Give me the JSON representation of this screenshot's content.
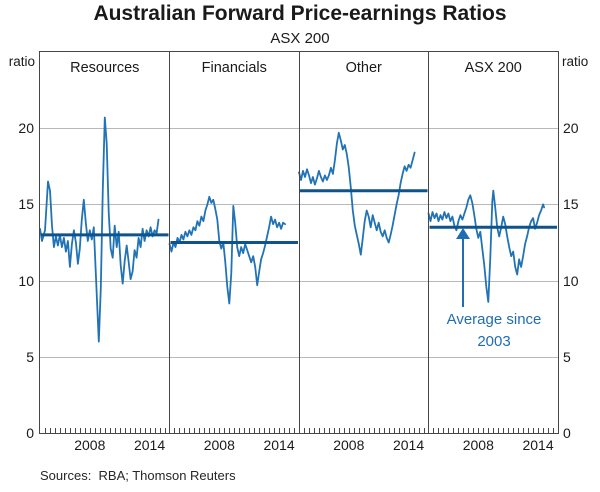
{
  "chart_data": {
    "type": "line",
    "title": "Australian Forward Price-earnings Ratios",
    "subtitle": "ASX 200",
    "ylabel_left": "ratio",
    "ylabel_right": "ratio",
    "ylim": [
      0,
      25
    ],
    "y_ticks": [
      0,
      5,
      10,
      15,
      20
    ],
    "grid_values": [
      5,
      10,
      15,
      20
    ],
    "grid": true,
    "legend": "none",
    "x_range": [
      2003,
      2016
    ],
    "x_tick_years": [
      2008,
      2014
    ],
    "x_tick_labels": [
      "2008",
      "2014"
    ],
    "minor_tick_interval_years": 0.5,
    "colors": {
      "series": "#2173b5",
      "average_line": "#0e538c",
      "annotation": "#1f6db2",
      "grid": "#b8b8b8",
      "frame": "#464646",
      "text": "#1a1a1a"
    },
    "annotation": {
      "line1": "Average since",
      "line2": "2003",
      "panel": "ASX 200",
      "points_to_value": 13.5
    },
    "panels": [
      {
        "label": "Resources",
        "average": 13.0,
        "series": [
          [
            2003,
            13.4
          ],
          [
            2003.2,
            12.6
          ],
          [
            2003.5,
            13.3
          ],
          [
            2003.8,
            16.5
          ],
          [
            2004,
            15.9
          ],
          [
            2004.2,
            13.6
          ],
          [
            2004.4,
            12.2
          ],
          [
            2004.6,
            12.9
          ],
          [
            2004.8,
            12.3
          ],
          [
            2005,
            13.0
          ],
          [
            2005.2,
            12.2
          ],
          [
            2005.4,
            12.8
          ],
          [
            2005.6,
            11.9
          ],
          [
            2005.8,
            12.6
          ],
          [
            2006,
            10.9
          ],
          [
            2006.2,
            12.4
          ],
          [
            2006.4,
            13.3
          ],
          [
            2006.6,
            12.5
          ],
          [
            2006.8,
            11.1
          ],
          [
            2007,
            12.1
          ],
          [
            2007.2,
            14.0
          ],
          [
            2007.4,
            15.3
          ],
          [
            2007.6,
            13.8
          ],
          [
            2007.8,
            12.6
          ],
          [
            2008,
            13.3
          ],
          [
            2008.2,
            12.7
          ],
          [
            2008.4,
            13.5
          ],
          [
            2008.6,
            10.5
          ],
          [
            2008.9,
            6.0
          ],
          [
            2009.1,
            9.5
          ],
          [
            2009.3,
            16.0
          ],
          [
            2009.5,
            20.7
          ],
          [
            2009.7,
            19.0
          ],
          [
            2009.9,
            14.5
          ],
          [
            2010.1,
            12.1
          ],
          [
            2010.3,
            11.5
          ],
          [
            2010.5,
            13.6
          ],
          [
            2010.7,
            12.2
          ],
          [
            2010.9,
            13.2
          ],
          [
            2011.1,
            11.0
          ],
          [
            2011.3,
            9.8
          ],
          [
            2011.5,
            11.3
          ],
          [
            2011.7,
            12.3
          ],
          [
            2011.9,
            11.2
          ],
          [
            2012.1,
            10.1
          ],
          [
            2012.3,
            10.6
          ],
          [
            2012.5,
            12.0
          ],
          [
            2012.7,
            11.5
          ],
          [
            2012.9,
            12.8
          ],
          [
            2013.1,
            12.2
          ],
          [
            2013.3,
            13.4
          ],
          [
            2013.5,
            12.6
          ],
          [
            2013.7,
            13.3
          ],
          [
            2013.9,
            12.9
          ],
          [
            2014.1,
            13.5
          ],
          [
            2014.3,
            12.9
          ],
          [
            2014.5,
            13.3
          ],
          [
            2014.7,
            13.1
          ],
          [
            2014.9,
            14.0
          ]
        ]
      },
      {
        "label": "Financials",
        "average": 12.5,
        "series": [
          [
            2003,
            12.4
          ],
          [
            2003.2,
            11.9
          ],
          [
            2003.4,
            12.5
          ],
          [
            2003.6,
            12.2
          ],
          [
            2003.8,
            12.8
          ],
          [
            2004,
            12.5
          ],
          [
            2004.2,
            13.0
          ],
          [
            2004.4,
            12.7
          ],
          [
            2004.6,
            13.2
          ],
          [
            2004.8,
            12.9
          ],
          [
            2005,
            13.3
          ],
          [
            2005.2,
            13.0
          ],
          [
            2005.4,
            13.5
          ],
          [
            2005.6,
            13.3
          ],
          [
            2005.8,
            13.9
          ],
          [
            2006,
            13.6
          ],
          [
            2006.2,
            14.2
          ],
          [
            2006.4,
            13.9
          ],
          [
            2006.6,
            14.6
          ],
          [
            2006.8,
            15.0
          ],
          [
            2007,
            15.5
          ],
          [
            2007.2,
            15.1
          ],
          [
            2007.4,
            15.3
          ],
          [
            2007.6,
            14.7
          ],
          [
            2007.8,
            14.0
          ],
          [
            2008,
            12.6
          ],
          [
            2008.2,
            12.1
          ],
          [
            2008.4,
            12.5
          ],
          [
            2008.6,
            11.2
          ],
          [
            2008.8,
            9.6
          ],
          [
            2009,
            8.5
          ],
          [
            2009.2,
            10.5
          ],
          [
            2009.4,
            14.9
          ],
          [
            2009.6,
            13.8
          ],
          [
            2009.8,
            12.2
          ],
          [
            2010,
            11.6
          ],
          [
            2010.2,
            12.2
          ],
          [
            2010.4,
            11.8
          ],
          [
            2010.6,
            12.4
          ],
          [
            2010.8,
            12.0
          ],
          [
            2011,
            11.6
          ],
          [
            2011.2,
            11.2
          ],
          [
            2011.4,
            11.6
          ],
          [
            2011.6,
            10.9
          ],
          [
            2011.8,
            9.7
          ],
          [
            2012,
            10.6
          ],
          [
            2012.2,
            11.4
          ],
          [
            2012.4,
            11.8
          ],
          [
            2012.6,
            12.3
          ],
          [
            2012.8,
            12.9
          ],
          [
            2013,
            13.5
          ],
          [
            2013.2,
            14.2
          ],
          [
            2013.4,
            13.7
          ],
          [
            2013.6,
            14.0
          ],
          [
            2013.8,
            13.5
          ],
          [
            2014,
            13.8
          ],
          [
            2014.2,
            13.4
          ],
          [
            2014.4,
            13.8
          ],
          [
            2014.6,
            13.7
          ]
        ]
      },
      {
        "label": "Other",
        "average": 15.9,
        "series": [
          [
            2003,
            17.1
          ],
          [
            2003.2,
            16.6
          ],
          [
            2003.4,
            17.2
          ],
          [
            2003.6,
            16.8
          ],
          [
            2003.8,
            17.3
          ],
          [
            2004,
            16.9
          ],
          [
            2004.2,
            16.4
          ],
          [
            2004.4,
            16.8
          ],
          [
            2004.6,
            16.3
          ],
          [
            2004.8,
            16.7
          ],
          [
            2005,
            17.2
          ],
          [
            2005.2,
            16.8
          ],
          [
            2005.4,
            16.5
          ],
          [
            2005.6,
            16.9
          ],
          [
            2005.8,
            16.6
          ],
          [
            2006,
            16.9
          ],
          [
            2006.2,
            17.4
          ],
          [
            2006.4,
            17.0
          ],
          [
            2006.6,
            17.9
          ],
          [
            2006.8,
            19.0
          ],
          [
            2007,
            19.7
          ],
          [
            2007.2,
            19.2
          ],
          [
            2007.4,
            18.6
          ],
          [
            2007.6,
            18.9
          ],
          [
            2007.8,
            18.3
          ],
          [
            2008,
            17.4
          ],
          [
            2008.2,
            16.1
          ],
          [
            2008.4,
            14.6
          ],
          [
            2008.6,
            13.6
          ],
          [
            2008.8,
            13.0
          ],
          [
            2009,
            12.4
          ],
          [
            2009.2,
            11.7
          ],
          [
            2009.4,
            12.8
          ],
          [
            2009.6,
            13.9
          ],
          [
            2009.8,
            14.6
          ],
          [
            2010,
            14.2
          ],
          [
            2010.2,
            13.5
          ],
          [
            2010.4,
            14.3
          ],
          [
            2010.6,
            13.8
          ],
          [
            2010.8,
            13.3
          ],
          [
            2011,
            13.8
          ],
          [
            2011.2,
            13.2
          ],
          [
            2011.4,
            12.9
          ],
          [
            2011.6,
            13.3
          ],
          [
            2011.8,
            12.8
          ],
          [
            2012,
            12.5
          ],
          [
            2012.2,
            13.0
          ],
          [
            2012.4,
            13.6
          ],
          [
            2012.6,
            14.3
          ],
          [
            2012.8,
            15.0
          ],
          [
            2013,
            15.6
          ],
          [
            2013.2,
            16.4
          ],
          [
            2013.4,
            17.0
          ],
          [
            2013.6,
            17.5
          ],
          [
            2013.8,
            17.2
          ],
          [
            2014,
            17.6
          ],
          [
            2014.2,
            17.4
          ],
          [
            2014.4,
            17.9
          ],
          [
            2014.6,
            18.4
          ]
        ]
      },
      {
        "label": "ASX 200",
        "average": 13.5,
        "series": [
          [
            2003,
            14.4
          ],
          [
            2003.2,
            13.9
          ],
          [
            2003.4,
            14.5
          ],
          [
            2003.6,
            14.1
          ],
          [
            2003.8,
            14.4
          ],
          [
            2004,
            13.9
          ],
          [
            2004.2,
            14.3
          ],
          [
            2004.4,
            14.0
          ],
          [
            2004.6,
            14.5
          ],
          [
            2004.8,
            14.1
          ],
          [
            2005,
            14.4
          ],
          [
            2005.2,
            13.9
          ],
          [
            2005.4,
            14.2
          ],
          [
            2005.6,
            13.6
          ],
          [
            2005.8,
            13.3
          ],
          [
            2006,
            13.9
          ],
          [
            2006.2,
            14.3
          ],
          [
            2006.4,
            14.0
          ],
          [
            2006.6,
            14.4
          ],
          [
            2006.8,
            14.8
          ],
          [
            2007,
            15.3
          ],
          [
            2007.2,
            15.6
          ],
          [
            2007.4,
            15.1
          ],
          [
            2007.6,
            14.3
          ],
          [
            2007.8,
            13.4
          ],
          [
            2008,
            12.8
          ],
          [
            2008.2,
            13.2
          ],
          [
            2008.4,
            12.1
          ],
          [
            2008.6,
            11.0
          ],
          [
            2008.8,
            9.6
          ],
          [
            2009,
            8.6
          ],
          [
            2009.2,
            11.5
          ],
          [
            2009.4,
            15.2
          ],
          [
            2009.5,
            15.9
          ],
          [
            2009.7,
            14.8
          ],
          [
            2009.9,
            13.5
          ],
          [
            2010.1,
            12.9
          ],
          [
            2010.3,
            13.5
          ],
          [
            2010.5,
            14.2
          ],
          [
            2010.7,
            13.7
          ],
          [
            2010.9,
            12.9
          ],
          [
            2011.1,
            12.2
          ],
          [
            2011.3,
            11.6
          ],
          [
            2011.5,
            11.9
          ],
          [
            2011.7,
            10.9
          ],
          [
            2011.9,
            10.4
          ],
          [
            2012.1,
            11.4
          ],
          [
            2012.3,
            10.9
          ],
          [
            2012.5,
            11.6
          ],
          [
            2012.7,
            12.4
          ],
          [
            2012.9,
            12.9
          ],
          [
            2013.1,
            13.5
          ],
          [
            2013.3,
            13.9
          ],
          [
            2013.5,
            14.1
          ],
          [
            2013.7,
            13.4
          ],
          [
            2013.9,
            13.8
          ],
          [
            2014.1,
            14.3
          ],
          [
            2014.3,
            14.6
          ],
          [
            2014.5,
            15.0
          ],
          [
            2014.6,
            14.8
          ]
        ]
      }
    ]
  },
  "footer": {
    "sources": "Sources:  RBA; Thomson Reuters"
  }
}
